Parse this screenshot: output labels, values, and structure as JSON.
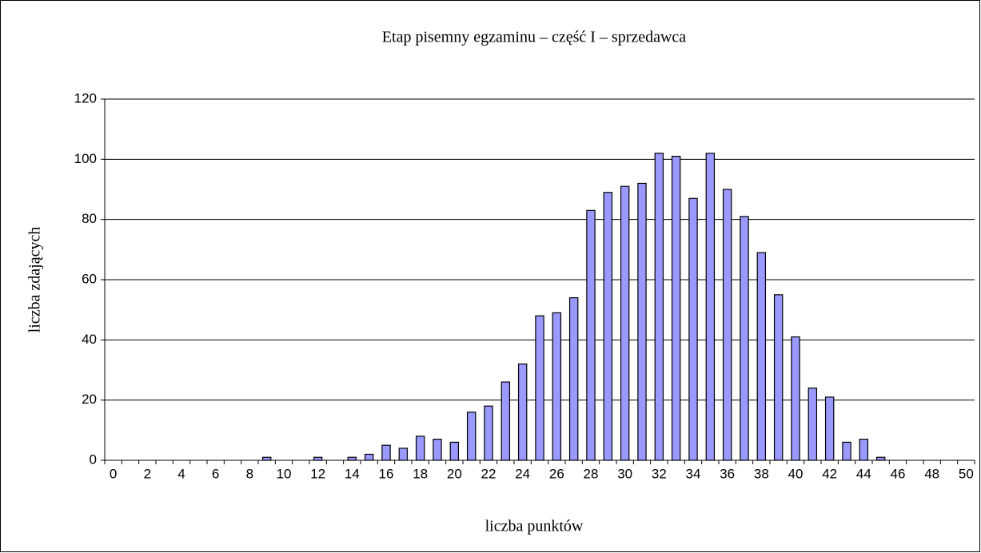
{
  "chart_data": {
    "type": "bar",
    "title": "Etap pisemny egzaminu – część I – sprzedawca",
    "x_label": "liczba punktów",
    "y_label": "liczba zdających",
    "categories": [
      "0",
      null,
      "2",
      null,
      "4",
      null,
      "6",
      null,
      "8",
      null,
      "10",
      null,
      "12",
      null,
      "14",
      null,
      "16",
      null,
      "18",
      null,
      "20",
      null,
      "22",
      null,
      "24",
      null,
      "26",
      null,
      "28",
      null,
      "30",
      null,
      "32",
      null,
      "34",
      null,
      "36",
      null,
      "38",
      null,
      "40",
      null,
      "42",
      null,
      "44",
      null,
      "46",
      null,
      "48",
      null,
      "50"
    ],
    "values": [
      0,
      0,
      0,
      0,
      0,
      0,
      0,
      0,
      0,
      1,
      0,
      0,
      1,
      0,
      1,
      2,
      5,
      4,
      8,
      7,
      6,
      16,
      18,
      26,
      32,
      48,
      49,
      54,
      83,
      89,
      91,
      92,
      102,
      101,
      87,
      102,
      90,
      81,
      69,
      55,
      41,
      24,
      21,
      6,
      7,
      1,
      0,
      0,
      0,
      0,
      0
    ],
    "color": "#9999ff",
    "ylim": [
      0,
      120
    ],
    "yticks": [
      0,
      20,
      40,
      60,
      80,
      100,
      120
    ],
    "grid": true
  }
}
